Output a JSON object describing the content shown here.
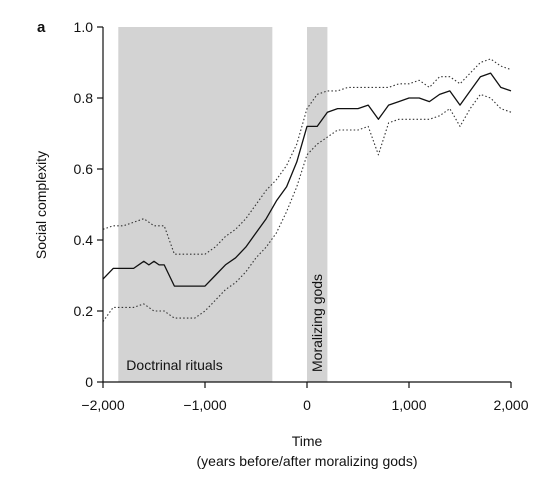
{
  "panel_label": "a",
  "chart_data": {
    "type": "line",
    "xlabel": "Time",
    "xlabel_sub": "(years before/after moralizing gods)",
    "ylabel": "Social complexity",
    "xlim": [
      -2000,
      2000
    ],
    "ylim": [
      0,
      1.0
    ],
    "x_ticks": [
      -2000,
      -1000,
      0,
      1000,
      2000
    ],
    "x_tick_labels": [
      "−2,000",
      "−1,000",
      "0",
      "1,000",
      "2,000"
    ],
    "y_ticks": [
      0,
      0.2,
      0.4,
      0.6,
      0.8,
      1.0
    ],
    "y_tick_labels": [
      "0",
      "0.2",
      "0.4",
      "0.6",
      "0.8",
      "1.0"
    ],
    "shaded_regions": [
      {
        "label": "Doctrinal rituals",
        "x0": -1850,
        "x1": -340,
        "label_orientation": "horizontal"
      },
      {
        "label": "Moralizing gods",
        "x0": 0,
        "x1": 200,
        "label_orientation": "vertical"
      }
    ],
    "series": [
      {
        "role": "mean",
        "style": "solid",
        "x": [
          -2000,
          -1900,
          -1800,
          -1700,
          -1600,
          -1550,
          -1500,
          -1450,
          -1400,
          -1300,
          -1200,
          -1100,
          -1000,
          -900,
          -800,
          -700,
          -600,
          -500,
          -400,
          -300,
          -200,
          -100,
          0,
          100,
          200,
          300,
          400,
          500,
          600,
          700,
          800,
          900,
          1000,
          1100,
          1200,
          1300,
          1400,
          1500,
          1600,
          1700,
          1800,
          1900,
          2000
        ],
        "y": [
          0.29,
          0.32,
          0.32,
          0.32,
          0.34,
          0.33,
          0.34,
          0.33,
          0.33,
          0.27,
          0.27,
          0.27,
          0.27,
          0.3,
          0.33,
          0.35,
          0.38,
          0.42,
          0.46,
          0.51,
          0.55,
          0.62,
          0.72,
          0.72,
          0.76,
          0.77,
          0.77,
          0.77,
          0.78,
          0.74,
          0.78,
          0.79,
          0.8,
          0.8,
          0.79,
          0.81,
          0.82,
          0.78,
          0.82,
          0.86,
          0.87,
          0.83,
          0.82
        ]
      },
      {
        "role": "upper_bound",
        "style": "dotted",
        "x": [
          -2000,
          -1900,
          -1800,
          -1700,
          -1600,
          -1500,
          -1400,
          -1300,
          -1200,
          -1100,
          -1000,
          -900,
          -800,
          -700,
          -600,
          -500,
          -400,
          -300,
          -200,
          -100,
          0,
          100,
          200,
          300,
          400,
          500,
          600,
          700,
          800,
          900,
          1000,
          1100,
          1200,
          1300,
          1400,
          1500,
          1600,
          1700,
          1800,
          1900,
          2000
        ],
        "y": [
          0.43,
          0.44,
          0.44,
          0.45,
          0.46,
          0.44,
          0.44,
          0.36,
          0.36,
          0.36,
          0.36,
          0.38,
          0.41,
          0.43,
          0.46,
          0.5,
          0.54,
          0.57,
          0.61,
          0.67,
          0.77,
          0.81,
          0.82,
          0.82,
          0.83,
          0.83,
          0.83,
          0.83,
          0.83,
          0.84,
          0.84,
          0.85,
          0.83,
          0.86,
          0.86,
          0.84,
          0.87,
          0.9,
          0.91,
          0.89,
          0.88
        ]
      },
      {
        "role": "lower_bound",
        "style": "dotted",
        "x": [
          -2000,
          -1900,
          -1800,
          -1700,
          -1600,
          -1500,
          -1400,
          -1300,
          -1200,
          -1100,
          -1000,
          -900,
          -800,
          -700,
          -600,
          -500,
          -400,
          -300,
          -200,
          -100,
          0,
          100,
          200,
          300,
          400,
          500,
          600,
          700,
          800,
          900,
          1000,
          1100,
          1200,
          1300,
          1400,
          1500,
          1600,
          1700,
          1800,
          1900,
          2000
        ],
        "y": [
          0.17,
          0.21,
          0.21,
          0.21,
          0.22,
          0.2,
          0.2,
          0.18,
          0.18,
          0.18,
          0.2,
          0.23,
          0.26,
          0.28,
          0.31,
          0.35,
          0.38,
          0.42,
          0.48,
          0.55,
          0.64,
          0.67,
          0.69,
          0.71,
          0.71,
          0.71,
          0.72,
          0.64,
          0.73,
          0.74,
          0.74,
          0.74,
          0.74,
          0.75,
          0.77,
          0.72,
          0.77,
          0.81,
          0.8,
          0.77,
          0.76
        ]
      }
    ],
    "colors": {
      "mean": "#111111",
      "bounds": "#333333",
      "shade": "#d3d3d3",
      "axis": "#111111"
    }
  }
}
